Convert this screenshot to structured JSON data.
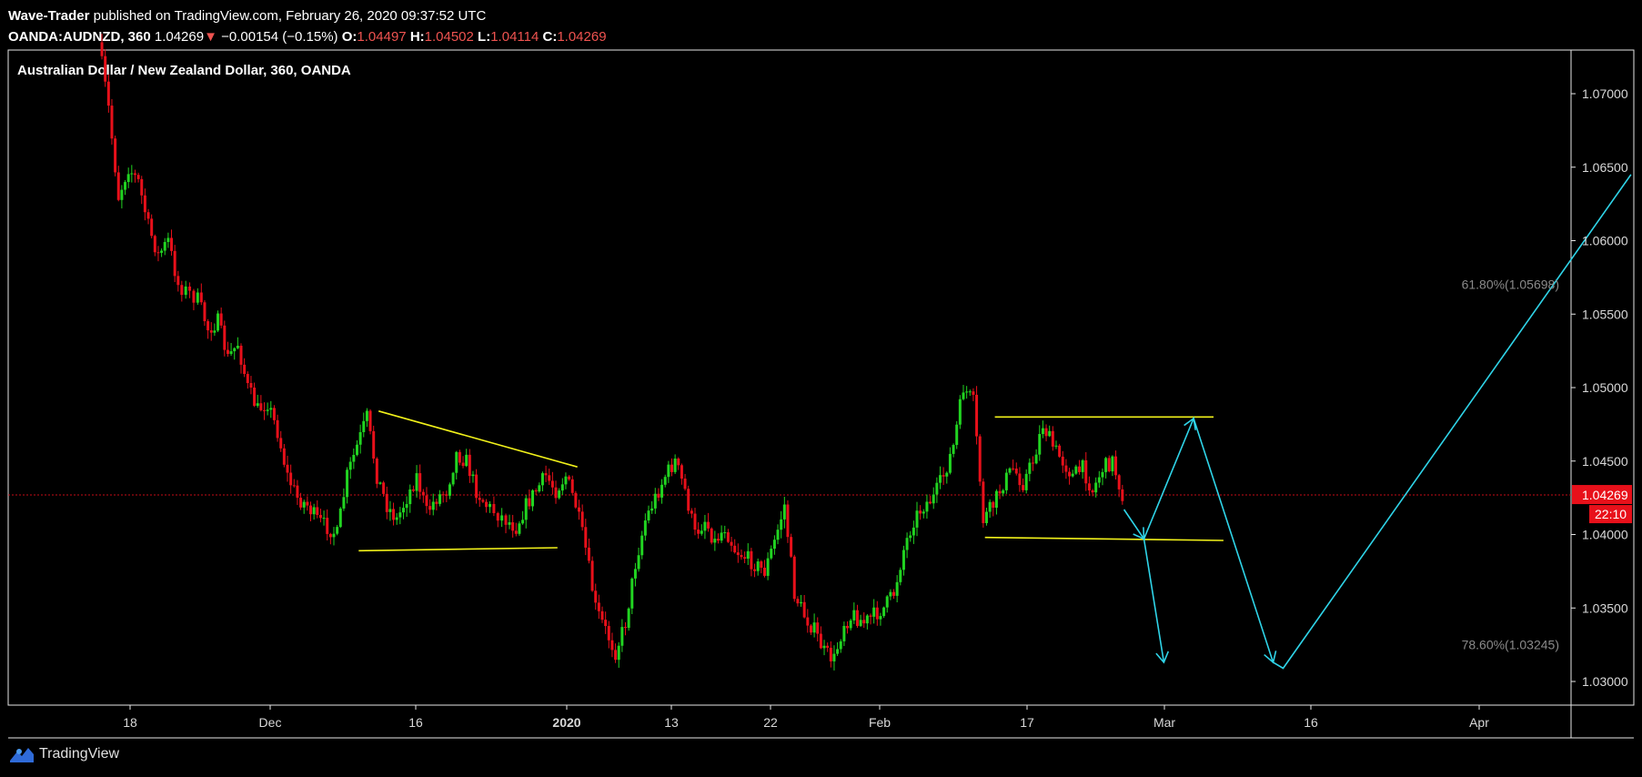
{
  "header": {
    "publisher_name": "Wave-Trader",
    "publisher_text": " published on TradingView.com, February 26, 2020 09:37:52 UTC",
    "symbol": "OANDA:AUDNZD, 360",
    "last": "1.04269",
    "change_arrow": "▼",
    "change": "−0.00154 (−0.15%)",
    "o_label": "O:",
    "o_value": "1.04497",
    "h_label": "H:",
    "h_value": "1.04502",
    "l_label": "L:",
    "l_value": "1.04114",
    "c_label": "C:",
    "c_value": "1.04269"
  },
  "footer": {
    "brand": "TradingView",
    "logo_icon": "tradingview-logo-icon"
  },
  "colors": {
    "up": "#21d421",
    "down": "#e8101a",
    "pattern": "#f2f21a",
    "projection": "#2fd4e8",
    "price_tag": "#e8101a",
    "axis_text": "#d8d8d8",
    "fib_text": "#8a8a8a"
  },
  "chart_data": {
    "type": "candlestick",
    "title": "Australian Dollar / New Zealand Dollar, 360, OANDA",
    "price_axis": {
      "ylim": [
        1.0277,
        1.0735
      ],
      "ticks": [
        "1.07000",
        "1.06500",
        "1.06000",
        "1.05500",
        "1.05000",
        "1.04500",
        "1.04000",
        "1.03500",
        "1.03000"
      ]
    },
    "time_axis": {
      "ticks": [
        "18",
        "Dec",
        "16",
        "2020",
        "13",
        "22",
        "Feb",
        "17",
        "Mar",
        "16",
        "Apr"
      ],
      "bold": [
        "2020"
      ]
    },
    "last_price": {
      "label": "1.04269",
      "value": 1.04269,
      "countdown": "22:10"
    },
    "fib_levels": [
      {
        "label": "61.80%(1.05698)",
        "value": 1.05698
      },
      {
        "label": "78.60%(1.03245)",
        "value": 1.03245
      }
    ],
    "price_path": [
      [
        "Nov 15",
        1.0735
      ],
      [
        "Nov 16",
        1.069
      ],
      [
        "Nov 17",
        1.063
      ],
      [
        "Nov 18",
        1.065
      ],
      [
        "Nov 19",
        1.064
      ],
      [
        "Nov 20",
        1.061
      ],
      [
        "Nov 21",
        1.059
      ],
      [
        "Nov 22",
        1.06
      ],
      [
        "Nov 23",
        1.057
      ],
      [
        "Nov 25",
        1.056
      ],
      [
        "Nov 26",
        1.054
      ],
      [
        "Nov 27",
        1.0545
      ],
      [
        "Nov 28",
        1.052
      ],
      [
        "Nov 29",
        1.053
      ],
      [
        "Nov 30",
        1.05
      ],
      [
        "Dec 1",
        1.0485
      ],
      [
        "Dec 2",
        1.049
      ],
      [
        "Dec 3",
        1.047
      ],
      [
        "Dec 4",
        1.044
      ],
      [
        "Dec 5",
        1.0425
      ],
      [
        "Dec 6",
        1.042
      ],
      [
        "Dec 7",
        1.041
      ],
      [
        "Dec 8",
        1.0405
      ],
      [
        "Dec 9",
        1.04
      ],
      [
        "Dec 10",
        1.044
      ],
      [
        "Dec 11",
        1.046
      ],
      [
        "Dec 12",
        1.048
      ],
      [
        "Dec 13",
        1.044
      ],
      [
        "Dec 14",
        1.042
      ],
      [
        "Dec 15",
        1.041
      ],
      [
        "Dec 16",
        1.0425
      ],
      [
        "Dec 17",
        1.044
      ],
      [
        "Dec 18",
        1.0415
      ],
      [
        "Dec 19",
        1.0425
      ],
      [
        "Dec 20",
        1.043
      ],
      [
        "Dec 21",
        1.0455
      ],
      [
        "Dec 22",
        1.045
      ],
      [
        "Dec 23",
        1.043
      ],
      [
        "Dec 24",
        1.042
      ],
      [
        "Dec 26",
        1.041
      ],
      [
        "Dec 27",
        1.0405
      ],
      [
        "Dec 28",
        1.042
      ],
      [
        "Dec 29",
        1.043
      ],
      [
        "Dec 30",
        1.044
      ],
      [
        "Dec 31",
        1.043
      ],
      [
        "Jan 1",
        1.044
      ],
      [
        "Jan 2",
        1.042
      ],
      [
        "Jan 3",
        1.039
      ],
      [
        "Jan 4",
        1.035
      ],
      [
        "Jan 5",
        1.0335
      ],
      [
        "Jan 6",
        1.032
      ],
      [
        "Jan 7",
        1.034
      ],
      [
        "Jan 8",
        1.038
      ],
      [
        "Jan 9",
        1.041
      ],
      [
        "Jan 10",
        1.0425
      ],
      [
        "Jan 11",
        1.044
      ],
      [
        "Jan 12",
        1.045
      ],
      [
        "Jan 13",
        1.043
      ],
      [
        "Jan 14",
        1.04
      ],
      [
        "Jan 15",
        1.041
      ],
      [
        "Jan 16",
        1.0395
      ],
      [
        "Jan 17",
        1.0405
      ],
      [
        "Jan 18",
        1.039
      ],
      [
        "Jan 19",
        1.0385
      ],
      [
        "Jan 20",
        1.038
      ],
      [
        "Jan 21",
        1.0375
      ],
      [
        "Jan 22",
        1.0395
      ],
      [
        "Jan 23",
        1.042
      ],
      [
        "Jan 24",
        1.036
      ],
      [
        "Jan 25",
        1.0345
      ],
      [
        "Jan 26",
        1.0335
      ],
      [
        "Jan 27",
        1.032
      ],
      [
        "Jan 28",
        1.0315
      ],
      [
        "Jan 29",
        1.034
      ],
      [
        "Jan 30",
        1.0345
      ],
      [
        "Jan 31",
        1.034
      ],
      [
        "Feb 1",
        1.0345
      ],
      [
        "Feb 2",
        1.035
      ],
      [
        "Feb 3",
        1.036
      ],
      [
        "Feb 4",
        1.039
      ],
      [
        "Feb 5",
        1.041
      ],
      [
        "Feb 6",
        1.042
      ],
      [
        "Feb 7",
        1.0425
      ],
      [
        "Feb 8",
        1.044
      ],
      [
        "Feb 9",
        1.046
      ],
      [
        "Feb 10",
        1.05
      ],
      [
        "Feb 11",
        1.049
      ],
      [
        "Feb 12",
        1.041
      ],
      [
        "Feb 13",
        1.042
      ],
      [
        "Feb 14",
        1.0435
      ],
      [
        "Feb 15",
        1.0445
      ],
      [
        "Feb 16",
        1.0435
      ],
      [
        "Feb 17",
        1.045
      ],
      [
        "Feb 18",
        1.0475
      ],
      [
        "Feb 19",
        1.046
      ],
      [
        "Feb 20",
        1.045
      ],
      [
        "Feb 21",
        1.044
      ],
      [
        "Feb 22",
        1.0445
      ],
      [
        "Feb 23",
        1.043
      ],
      [
        "Feb 24",
        1.0445
      ],
      [
        "Feb 25",
        1.045
      ],
      [
        "Feb 26",
        1.04269
      ]
    ],
    "drawings": {
      "triangle_upper": [
        [
          "Dec 13",
          1.0484
        ],
        [
          "Jan 2",
          1.0446
        ]
      ],
      "triangle_lower": [
        [
          "Dec 11",
          1.0389
        ],
        [
          "Dec 31",
          1.0391
        ]
      ],
      "range_upper": [
        [
          "Feb 13",
          1.048
        ],
        [
          "Mar 6",
          1.048
        ]
      ],
      "range_lower": [
        [
          "Feb 12",
          1.0398
        ],
        [
          "Mar 7",
          1.0396
        ]
      ],
      "projection_a": [
        [
          "Feb 26",
          1.0417
        ],
        [
          "Feb 28",
          1.0397
        ],
        [
          "Mar 1",
          1.0313
        ]
      ],
      "projection_b": [
        [
          "Feb 28",
          1.0397
        ],
        [
          "Mar 4",
          1.0479
        ],
        [
          "Mar 12",
          1.0313
        ],
        [
          "Mar 13",
          1.0309
        ],
        [
          "Apr 17",
          1.0645
        ]
      ]
    }
  }
}
